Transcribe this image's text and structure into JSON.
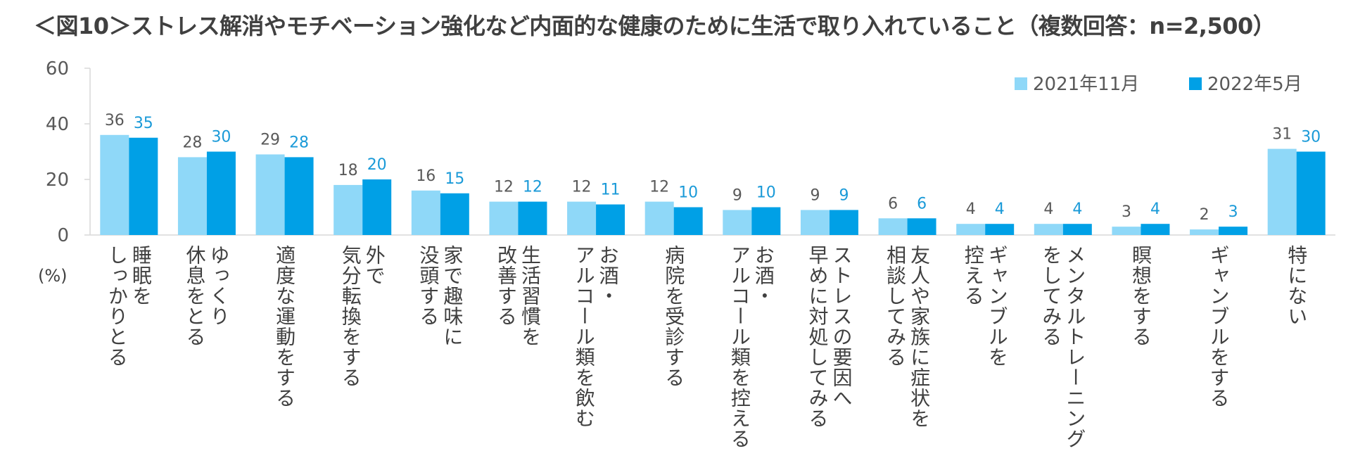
{
  "chart_data": {
    "type": "bar",
    "title": "＜図10＞ストレス解消やモチベーション強化など内面的な健康のために生活で取り入れていること（複数回答：n=2,500）",
    "unit_label": "(%)",
    "ylim": [
      0,
      60
    ],
    "yticks": [
      "0",
      "20",
      "40",
      "60"
    ],
    "legend_position": "top-right",
    "categories": [
      [
        "睡眠を",
        "しっかりとる"
      ],
      [
        "ゆっくり",
        "休息をとる"
      ],
      [
        "適度な運動をする"
      ],
      [
        "外で",
        "気分転換をする"
      ],
      [
        "家で趣味に",
        "没頭する"
      ],
      [
        "生活習慣を",
        "改善する"
      ],
      [
        "お酒・",
        "アルコール類を飲む"
      ],
      [
        "病院を受診する"
      ],
      [
        "お酒・",
        "アルコール類を控える"
      ],
      [
        "ストレスの要因へ",
        "早めに対処してみる"
      ],
      [
        "友人や家族に症状を",
        "相談してみる"
      ],
      [
        "ギャンブルを",
        "控える"
      ],
      [
        "メンタルトレーニング",
        "をしてみる"
      ],
      [
        "瞑想をする"
      ],
      [
        "ギャンブルをする"
      ],
      [
        "特にない"
      ]
    ],
    "series": [
      {
        "name": "2021年11月",
        "color": "#8fd8f8",
        "labelColor": "#595959",
        "values": [
          36,
          28,
          29,
          18,
          16,
          12,
          12,
          12,
          9,
          9,
          6,
          4,
          4,
          3,
          2,
          31
        ]
      },
      {
        "name": "2022年5月",
        "color": "#00a0e6",
        "labelColor": "#1a9ad8",
        "values": [
          35,
          30,
          28,
          20,
          15,
          12,
          11,
          10,
          10,
          9,
          6,
          4,
          4,
          4,
          3,
          30
        ]
      }
    ]
  }
}
